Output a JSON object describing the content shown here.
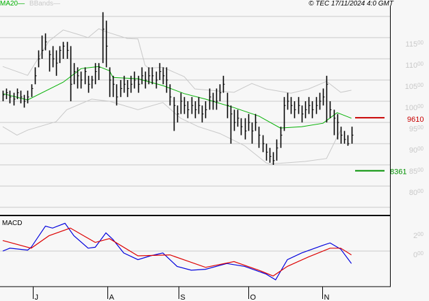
{
  "header": {
    "legend_ma": "MA20",
    "legend_bbands": "BBands",
    "copyright": "© TEC 17/11/2024 4:0 GMT"
  },
  "colors": {
    "bars": "#000000",
    "ma20": "#00b000",
    "bbands": "#c8c8c8",
    "resistance": "#c80000",
    "support": "#009000",
    "macd": "#0000dd",
    "signal": "#dd0000",
    "grid": "#c8c8c8",
    "axis_label": "#c8c8c8"
  },
  "chart_data": [
    {
      "type": "ohlc",
      "title": "",
      "y_ticks": [
        {
          "value": 115,
          "int": "115",
          "dec": "00"
        },
        {
          "value": 110,
          "int": "110",
          "dec": "00"
        },
        {
          "value": 105,
          "int": "105",
          "dec": "00"
        },
        {
          "value": 100,
          "int": "100",
          "dec": "00"
        },
        {
          "value": 95,
          "int": "95",
          "dec": "00"
        },
        {
          "value": 90,
          "int": "90",
          "dec": "00"
        },
        {
          "value": 85,
          "int": "85",
          "dec": "00"
        },
        {
          "value": 80,
          "int": "80",
          "dec": "00"
        }
      ],
      "ylim": [
        74,
        124
      ],
      "x_ticks": [
        {
          "bar": 8.5,
          "label": "J"
        },
        {
          "bar": 29.4,
          "label": "A"
        },
        {
          "bar": 49.4,
          "label": "S"
        },
        {
          "bar": 69,
          "label": "O"
        },
        {
          "bar": 89.8,
          "label": "N"
        }
      ],
      "bars_hlc": [
        [
          102.5,
          100,
          101.5
        ],
        [
          103,
          100.5,
          102
        ],
        [
          102.5,
          99.5,
          101
        ],
        [
          102,
          99,
          100.5
        ],
        [
          103,
          100.5,
          102
        ],
        [
          102.5,
          99.5,
          101
        ],
        [
          101.5,
          98.5,
          100
        ],
        [
          102.5,
          99.5,
          101
        ],
        [
          104,
          101,
          103
        ],
        [
          108,
          104,
          106
        ],
        [
          112,
          108,
          110
        ],
        [
          115.5,
          110,
          112
        ],
        [
          116,
          112,
          114
        ],
        [
          112,
          107,
          111
        ],
        [
          113,
          108,
          110
        ],
        [
          112,
          106,
          109
        ],
        [
          113,
          109,
          112
        ],
        [
          114,
          110,
          113
        ],
        [
          114,
          110,
          112
        ],
        [
          113,
          100,
          104
        ],
        [
          109,
          104,
          107
        ],
        [
          108,
          103,
          106
        ],
        [
          107,
          103,
          105
        ],
        [
          108,
          104,
          107
        ],
        [
          106,
          102,
          104
        ],
        [
          106,
          103,
          105
        ],
        [
          109,
          104,
          107
        ],
        [
          109,
          105,
          108
        ],
        [
          121,
          109,
          117
        ],
        [
          119,
          108,
          113
        ],
        [
          108,
          101,
          105
        ],
        [
          106,
          101,
          104
        ],
        [
          104,
          99,
          101
        ],
        [
          105,
          101,
          103
        ],
        [
          106,
          102,
          104
        ],
        [
          105,
          101,
          103
        ],
        [
          106,
          102,
          104
        ],
        [
          107,
          103,
          105
        ],
        [
          106,
          102,
          104
        ],
        [
          108,
          104,
          106
        ],
        [
          107,
          103,
          105
        ],
        [
          108,
          104,
          106
        ],
        [
          108,
          104,
          106
        ],
        [
          107,
          103,
          105
        ],
        [
          109,
          105,
          107
        ],
        [
          108,
          104,
          106
        ],
        [
          108,
          102,
          105
        ],
        [
          104,
          99,
          101
        ],
        [
          101,
          93,
          99
        ],
        [
          99,
          95,
          97
        ],
        [
          102,
          97,
          100
        ],
        [
          101,
          97,
          99
        ],
        [
          100,
          96,
          98
        ],
        [
          101,
          97,
          99
        ],
        [
          100,
          96,
          98
        ],
        [
          101,
          97,
          99
        ],
        [
          99,
          95,
          97
        ],
        [
          100,
          96,
          98
        ],
        [
          103,
          98,
          101
        ],
        [
          102,
          98,
          100
        ],
        [
          103,
          98,
          100
        ],
        [
          104,
          100,
          102
        ],
        [
          106,
          102,
          104
        ],
        [
          102,
          96,
          99
        ],
        [
          99,
          90,
          97
        ],
        [
          98,
          93,
          95
        ],
        [
          98,
          94,
          96
        ],
        [
          96,
          92,
          94
        ],
        [
          96,
          91,
          93
        ],
        [
          97,
          93,
          95
        ],
        [
          95,
          90,
          93
        ],
        [
          97,
          93,
          95
        ],
        [
          94,
          89,
          92
        ],
        [
          92,
          88,
          90
        ],
        [
          90,
          86,
          88
        ],
        [
          89,
          85.5,
          87
        ],
        [
          88,
          85,
          86
        ],
        [
          91,
          86,
          89
        ],
        [
          94,
          89,
          92
        ],
        [
          101,
          93,
          99
        ],
        [
          102,
          98,
          100
        ],
        [
          101,
          97,
          99
        ],
        [
          100,
          96,
          98
        ],
        [
          101,
          97,
          99
        ],
        [
          99,
          95,
          97
        ],
        [
          100,
          96,
          98
        ],
        [
          101,
          97,
          99
        ],
        [
          100,
          96,
          98
        ],
        [
          101,
          97,
          99
        ],
        [
          102,
          98,
          100
        ],
        [
          103,
          99,
          101
        ],
        [
          106,
          95,
          104
        ],
        [
          100,
          96,
          98
        ],
        [
          98,
          92,
          96
        ],
        [
          97,
          91,
          95
        ],
        [
          94,
          90,
          92
        ],
        [
          93,
          90,
          91
        ],
        [
          92,
          89.5,
          90
        ],
        [
          94,
          90,
          92
        ]
      ],
      "ma20": [
        [
          0,
          101.8
        ],
        [
          7,
          100.3
        ],
        [
          17,
          104.5
        ],
        [
          22,
          107.7
        ],
        [
          27,
          108.2
        ],
        [
          30,
          107.2
        ],
        [
          31,
          105.6
        ],
        [
          38,
          105.3
        ],
        [
          45,
          103.7
        ],
        [
          51,
          101.8
        ],
        [
          57,
          100.5
        ],
        [
          65,
          98.5
        ],
        [
          72,
          96.5
        ],
        [
          78,
          93.7
        ],
        [
          84,
          94
        ],
        [
          90,
          94.8
        ],
        [
          94,
          97.3
        ],
        [
          98,
          96
        ]
      ],
      "bband_upper": [
        [
          0,
          108.2
        ],
        [
          7,
          106.1
        ],
        [
          13,
          114.2
        ],
        [
          17,
          116.8
        ],
        [
          21,
          115.8
        ],
        [
          24,
          115
        ],
        [
          27,
          117.1
        ],
        [
          29,
          116.4
        ],
        [
          35,
          114.8
        ],
        [
          38,
          114.7
        ],
        [
          40,
          108.5
        ],
        [
          41,
          107.8
        ],
        [
          45,
          108
        ],
        [
          51,
          105.8
        ],
        [
          54,
          102.9
        ],
        [
          65,
          102.1
        ],
        [
          70,
          104.2
        ],
        [
          74,
          102.9
        ],
        [
          81,
          101.9
        ],
        [
          86,
          102.9
        ],
        [
          91,
          104.7
        ],
        [
          95,
          102.1
        ],
        [
          98,
          102.6
        ]
      ],
      "bband_lower": [
        [
          0,
          94
        ],
        [
          4,
          92
        ],
        [
          7,
          93.2
        ],
        [
          15,
          95.2
        ],
        [
          18,
          98
        ],
        [
          25,
          100.5
        ],
        [
          30,
          100
        ],
        [
          38,
          98
        ],
        [
          45,
          99.7
        ],
        [
          50,
          96
        ],
        [
          55,
          94
        ],
        [
          61,
          92.4
        ],
        [
          68,
          89.5
        ],
        [
          74,
          85.5
        ],
        [
          75,
          85.2
        ],
        [
          85,
          85.8
        ],
        [
          91,
          86.5
        ],
        [
          94,
          91.6
        ],
        [
          95,
          93.2
        ]
      ],
      "levels": [
        {
          "value": 96.1,
          "label": "9610",
          "kind": "resistance"
        },
        {
          "value": 83.61,
          "label": "8361",
          "kind": "support"
        }
      ]
    },
    {
      "type": "line",
      "title": "MACD",
      "y_ticks": [
        {
          "value": 2,
          "int": "2",
          "dec": "00"
        },
        {
          "value": 0,
          "int": "0",
          "dec": "00"
        }
      ],
      "ylim": [
        -3.6,
        3.7
      ],
      "series": [
        {
          "key": "macd",
          "points": [
            [
              0,
              0
            ],
            [
              2,
              0.3
            ],
            [
              7,
              0.1
            ],
            [
              8,
              0.4
            ],
            [
              12,
              2.6
            ],
            [
              14,
              2.4
            ],
            [
              17.5,
              2.9
            ],
            [
              20,
              1.6
            ],
            [
              24,
              0.3
            ],
            [
              26,
              0.4
            ],
            [
              29,
              1.9
            ],
            [
              31,
              1.2
            ],
            [
              34,
              -0.2
            ],
            [
              38,
              -0.9
            ],
            [
              41.5,
              -0.5
            ],
            [
              45,
              -0.2
            ],
            [
              49,
              -1.6
            ],
            [
              53,
              -2
            ],
            [
              57,
              -1.9
            ],
            [
              63,
              -1.3
            ],
            [
              68,
              -1.6
            ],
            [
              74,
              -2.4
            ],
            [
              76.7,
              -3
            ],
            [
              80,
              -0.9
            ],
            [
              84,
              -0.2
            ],
            [
              90,
              0.6
            ],
            [
              92,
              0.85
            ],
            [
              95,
              0.2
            ],
            [
              98,
              -1.3
            ]
          ]
        },
        {
          "key": "signal",
          "points": [
            [
              0,
              1.1
            ],
            [
              8,
              0.3
            ],
            [
              13,
              1.6
            ],
            [
              19,
              2.4
            ],
            [
              26,
              0.9
            ],
            [
              30,
              1.3
            ],
            [
              38,
              -0.5
            ],
            [
              47,
              -0.4
            ],
            [
              57,
              -1.7
            ],
            [
              65,
              -1.1
            ],
            [
              72,
              -2
            ],
            [
              76,
              -2.6
            ],
            [
              80,
              -1.6
            ],
            [
              86,
              -0.6
            ],
            [
              92,
              0.3
            ],
            [
              95,
              0.3
            ],
            [
              98,
              -0.4
            ]
          ]
        }
      ]
    }
  ]
}
